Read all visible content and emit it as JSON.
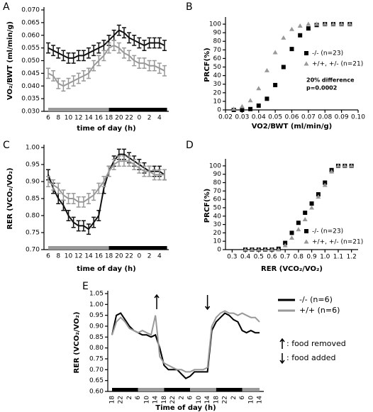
{
  "chart_data": [
    {
      "type": "line",
      "panel": "A",
      "x_label": "time of day (h)",
      "y_label": "VO₂/BWT (ml/min/g)",
      "categories": [
        "6",
        null,
        "8",
        null,
        "10",
        null,
        "12",
        null,
        "14",
        null,
        "16",
        null,
        "18",
        null,
        "20",
        null,
        "22",
        null,
        "0",
        null,
        "2",
        null,
        "4",
        null
      ],
      "series": [
        {
          "color": "#111111",
          "values": [
            0.055,
            0.054,
            0.053,
            0.052,
            0.051,
            0.051,
            0.052,
            0.052,
            0.053,
            0.054,
            0.055,
            0.056,
            0.058,
            0.06,
            0.062,
            0.061,
            0.059,
            0.058,
            0.057,
            0.056,
            0.057,
            0.057,
            0.057,
            0.056
          ],
          "errors": [
            0.002,
            0.002,
            0.002,
            0.002,
            0.002,
            0.002,
            0.002,
            0.002,
            0.002,
            0.002,
            0.002,
            0.002,
            0.002,
            0.002,
            0.002,
            0.002,
            0.002,
            0.002,
            0.002,
            0.002,
            0.002,
            0.002,
            0.002,
            0.002
          ]
        },
        {
          "color": "#999999",
          "values": [
            0.045,
            0.044,
            0.041,
            0.04,
            0.041,
            0.042,
            0.043,
            0.044,
            0.045,
            0.048,
            0.05,
            0.052,
            0.055,
            0.056,
            0.055,
            0.053,
            0.052,
            0.05,
            0.049,
            0.049,
            0.048,
            0.048,
            0.047,
            0.046
          ],
          "errors": [
            0.002,
            0.002,
            0.002,
            0.002,
            0.002,
            0.002,
            0.002,
            0.002,
            0.002,
            0.002,
            0.002,
            0.002,
            0.002,
            0.002,
            0.002,
            0.002,
            0.002,
            0.002,
            0.002,
            0.002,
            0.002,
            0.002,
            0.002,
            0.002
          ]
        }
      ],
      "ylim": [
        0.03,
        0.07
      ],
      "yticks": [
        {
          "value": 0.03,
          "label": "0.030"
        },
        0.035,
        {
          "value": 0.04,
          "label": "0.040"
        },
        0.045,
        {
          "value": 0.05,
          "label": "0.050"
        },
        0.055,
        {
          "value": 0.06,
          "label": "0.060"
        },
        0.065,
        {
          "value": 0.07,
          "label": "0.070"
        }
      ]
    },
    {
      "type": "scatter",
      "panel": "B",
      "x_label": "VO2/BWT (ml/min/g)",
      "y_label": "PRCF(%)",
      "x": [
        0.025,
        0.03,
        0.035,
        0.04,
        0.045,
        0.05,
        0.055,
        0.06,
        0.065,
        0.07,
        0.075,
        0.08,
        0.085,
        0.09,
        0.095
      ],
      "series": [
        {
          "name": "-/- (n=23)",
          "color": "#000000",
          "marker": "square",
          "values": [
            0,
            0,
            1,
            5,
            13,
            29,
            50,
            71,
            87,
            95,
            99,
            100,
            100,
            100,
            100
          ]
        },
        {
          "name": "+/+, +/-  (n=21)",
          "color": "#999999",
          "marker": "triangle",
          "values": [
            1,
            4,
            11,
            25,
            46,
            67,
            84,
            94,
            98,
            100,
            100,
            100,
            100,
            100,
            100
          ]
        }
      ],
      "xlim": [
        0.02,
        0.1
      ],
      "xticks": [
        0.02,
        0.03,
        0.04,
        0.05,
        0.06,
        0.07,
        0.08,
        0.09,
        {
          "value": 0.1,
          "label": "0.10"
        }
      ],
      "ylim": [
        0,
        105
      ],
      "yticks": [
        0,
        10,
        20,
        30,
        40,
        50,
        60,
        70,
        80,
        90,
        100
      ],
      "annotations": [
        "20% difference",
        "p=0.0002"
      ]
    },
    {
      "type": "line",
      "panel": "C",
      "x_label": "time of day (h)",
      "y_label": "RER (VCO₂/VO₂)",
      "categories": [
        "6",
        null,
        "8",
        null,
        "10",
        null,
        "12",
        null,
        "14",
        null,
        "16",
        null,
        "18",
        null,
        "20",
        null,
        "22",
        null,
        "0",
        null,
        "2",
        null,
        "4",
        null
      ],
      "series": [
        {
          "color": "#111111",
          "values": [
            0.92,
            0.88,
            0.85,
            0.83,
            0.8,
            0.78,
            0.77,
            0.77,
            0.76,
            0.78,
            0.8,
            0.88,
            0.93,
            0.96,
            0.98,
            0.98,
            0.97,
            0.96,
            0.95,
            0.94,
            0.93,
            0.93,
            0.93,
            0.92
          ],
          "errors": [
            0.015,
            0.015,
            0.015,
            0.015,
            0.015,
            0.015,
            0.015,
            0.015,
            0.015,
            0.015,
            0.015,
            0.015,
            0.015,
            0.015,
            0.015,
            0.015,
            0.015,
            0.015,
            0.015,
            0.015,
            0.015,
            0.015,
            0.015,
            0.015
          ]
        },
        {
          "color": "#999999",
          "values": [
            0.9,
            0.89,
            0.88,
            0.86,
            0.85,
            0.85,
            0.84,
            0.84,
            0.85,
            0.86,
            0.88,
            0.9,
            0.93,
            0.95,
            0.96,
            0.96,
            0.96,
            0.95,
            0.94,
            0.93,
            0.93,
            0.92,
            0.92,
            0.92
          ],
          "errors": [
            0.015,
            0.015,
            0.015,
            0.015,
            0.015,
            0.015,
            0.015,
            0.015,
            0.015,
            0.015,
            0.015,
            0.015,
            0.015,
            0.015,
            0.015,
            0.015,
            0.015,
            0.015,
            0.015,
            0.015,
            0.015,
            0.015,
            0.015,
            0.015
          ]
        }
      ],
      "ylim": [
        0.7,
        1.0
      ],
      "yticks": [
        {
          "value": 0.7,
          "label": "0.70"
        },
        0.75,
        {
          "value": 0.8,
          "label": "0.80"
        },
        0.85,
        {
          "value": 0.9,
          "label": "0.90"
        },
        0.95,
        {
          "value": 1,
          "label": "1.00"
        }
      ]
    },
    {
      "type": "scatter",
      "panel": "D",
      "x_label": "RER (VCO₂/VO₂)",
      "y_label": "PRCF(%)",
      "x": [
        0.4,
        0.45,
        0.5,
        0.55,
        0.6,
        0.65,
        0.7,
        0.75,
        0.8,
        0.85,
        0.9,
        0.95,
        1.0,
        1.05,
        1.1,
        1.15,
        1.2
      ],
      "series": [
        {
          "name": "-/- (n=23)",
          "color": "#000000",
          "marker": "square",
          "values": [
            0,
            0,
            0,
            0,
            0,
            1,
            8,
            20,
            32,
            44,
            55,
            66,
            80,
            95,
            100,
            100,
            100
          ]
        },
        {
          "name": "+/+, +/- (n=21)",
          "color": "#999999",
          "marker": "triangle",
          "values": [
            0,
            0,
            0,
            0,
            0,
            0,
            5,
            14,
            24,
            36,
            50,
            63,
            77,
            93,
            100,
            100,
            100
          ]
        }
      ],
      "xlim": [
        0.25,
        1.25
      ],
      "xticks": [
        0.3,
        0.4,
        0.5,
        0.6,
        0.7,
        0.8,
        0.9,
        {
          "value": 1,
          "label": "1.0"
        },
        1.1,
        1.2
      ],
      "ylim": [
        0,
        105
      ],
      "yticks": [
        0,
        10,
        20,
        30,
        40,
        50,
        60,
        70,
        80,
        90,
        100
      ]
    },
    {
      "type": "line",
      "panel": "E",
      "x_label": "Time of day (h)",
      "y_label": "RER (VCO₂/VO₂)",
      "categories": [
        "18",
        null,
        "22",
        null,
        "2",
        null,
        "6",
        null,
        "10",
        null,
        "14",
        null,
        "18",
        null,
        "22",
        null,
        "2",
        null,
        "6",
        null,
        "10",
        null,
        "14",
        null,
        "18",
        null,
        "22",
        null,
        "2",
        null,
        "6",
        null,
        "10",
        null,
        "14"
      ],
      "series": [
        {
          "name": "-/- (n=6)",
          "color": "#000000",
          "values": [
            0.86,
            0.95,
            0.96,
            0.93,
            0.9,
            0.88,
            0.87,
            0.86,
            0.86,
            0.85,
            0.86,
            0.8,
            0.72,
            0.7,
            0.7,
            0.7,
            0.68,
            0.66,
            0.67,
            0.69,
            0.69,
            0.69,
            0.69,
            0.88,
            0.92,
            0.94,
            0.96,
            0.95,
            0.93,
            0.92,
            0.88,
            0.87,
            0.88,
            0.87,
            0.87
          ]
        },
        {
          "name": "+/+ (n=6)",
          "color": "#999999",
          "values": [
            0.86,
            0.92,
            0.94,
            0.92,
            0.89,
            0.88,
            0.87,
            0.88,
            0.87,
            0.86,
            0.95,
            0.76,
            0.73,
            0.72,
            0.71,
            0.7,
            0.7,
            0.69,
            0.69,
            0.7,
            0.7,
            0.7,
            0.71,
            0.9,
            0.94,
            0.96,
            0.97,
            0.96,
            0.96,
            0.95,
            0.96,
            0.95,
            0.94,
            0.94,
            0.92
          ]
        }
      ],
      "ylim": [
        0.6,
        1.05
      ],
      "yticks": [
        {
          "value": 0.6,
          "label": "0.60"
        },
        0.65,
        {
          "value": 0.7,
          "label": "0.70"
        },
        0.75,
        {
          "value": 0.8,
          "label": "0.80"
        },
        0.85,
        {
          "value": 0.9,
          "label": "0.90"
        },
        0.95,
        {
          "value": 1,
          "label": "1.00"
        },
        1.05
      ],
      "annotations": [
        ": food removed",
        ": food added"
      ]
    }
  ]
}
